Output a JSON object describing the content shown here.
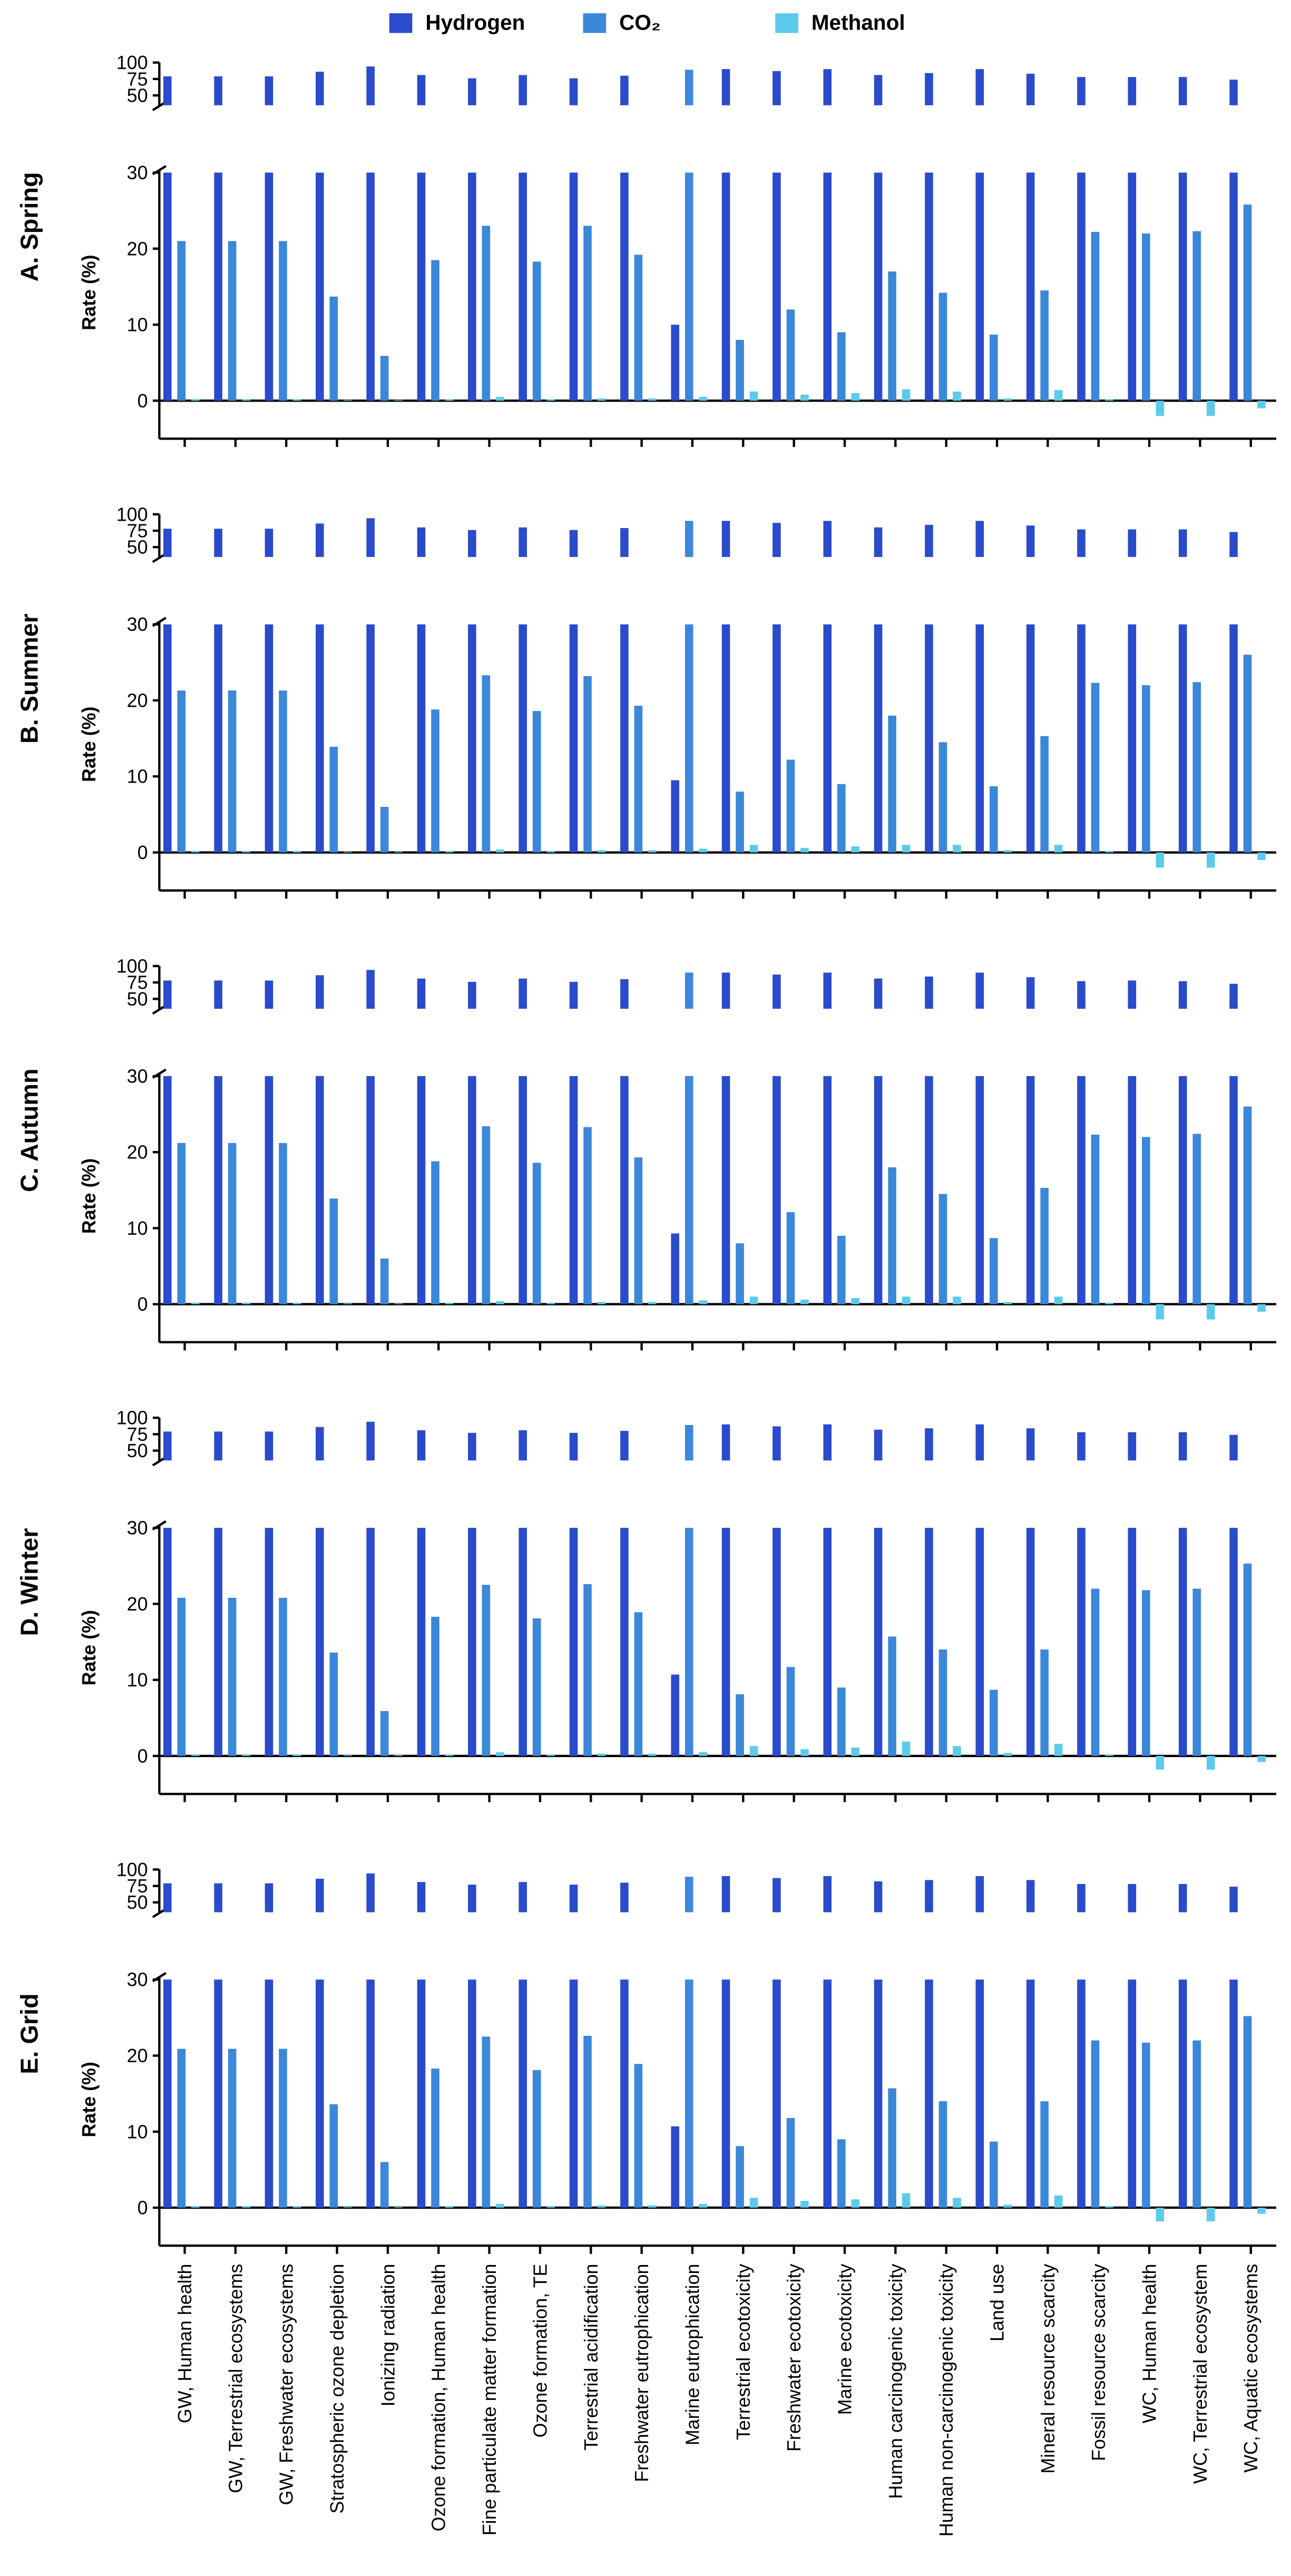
{
  "chart_data": {
    "type": "bar",
    "ylabel": "Rate (%)",
    "categories": [
      "GW, Human health",
      "GW, Terrestrial ecosystems",
      "GW, Freshwater ecosystems",
      "Stratospheric ozone depletion",
      "Ionizing radiation",
      "Ozone formation, Human health",
      "Fine particulate matter formation",
      "Ozone formation, TE",
      "Terrestrial acidification",
      "Freshwater eutrophication",
      "Marine eutrophication",
      "Terrestrial ecotoxicity",
      "Freshwater ecotoxicity",
      "Marine ecotoxicity",
      "Human carcinogenic toxicity",
      "Human non-carcinogenic toxicity",
      "Land use",
      "Mineral resource scarcity",
      "Fossil resource scarcity",
      "WC, Human health",
      "WC, Terrestrial ecosystem",
      "WC, Aquatic ecosystems"
    ],
    "series": [
      {
        "name": "Hydrogen",
        "color": "#2a4bcb"
      },
      {
        "name": "CO₂",
        "color": "#3b87da"
      },
      {
        "name": "Methanol",
        "color": "#5ccbea"
      }
    ],
    "ylim": [
      -5,
      30
    ],
    "yticks": [
      0,
      10,
      20,
      30
    ],
    "break_ylim": [
      40,
      100
    ],
    "break_yticks": [
      50,
      75,
      100
    ],
    "panels": [
      {
        "title": "A. Spring",
        "values": [
          [
            79,
            79,
            79,
            86,
            94,
            81,
            76,
            81,
            76,
            80,
            10,
            90,
            87,
            90,
            81,
            84,
            90,
            83,
            78,
            78,
            78,
            74
          ],
          [
            21,
            21,
            21,
            13.7,
            5.9,
            18.5,
            23,
            18.3,
            23,
            19.2,
            89,
            8,
            12,
            9,
            17,
            14.2,
            8.7,
            14.5,
            22.2,
            22,
            22.3,
            25.8
          ],
          [
            0.2,
            0.2,
            0.2,
            0.1,
            0.1,
            0.2,
            0.5,
            0.2,
            0.3,
            0.3,
            0.5,
            1.2,
            0.8,
            1,
            1.5,
            1.2,
            0.3,
            1.4,
            0.2,
            -2,
            -2,
            -1
          ]
        ]
      },
      {
        "title": "B. Summer",
        "values": [
          [
            78,
            78,
            78,
            86,
            94,
            80,
            76,
            80,
            76,
            79,
            9.5,
            90,
            87,
            90,
            80,
            84,
            90,
            83,
            77,
            77,
            77,
            73
          ],
          [
            21.3,
            21.3,
            21.3,
            13.9,
            6,
            18.8,
            23.3,
            18.6,
            23.2,
            19.3,
            90,
            8,
            12.2,
            9,
            18,
            14.5,
            8.7,
            15.3,
            22.3,
            22,
            22.4,
            26
          ],
          [
            0.2,
            0.2,
            0.2,
            0.1,
            0.1,
            0.2,
            0.4,
            0.2,
            0.3,
            0.3,
            0.5,
            1,
            0.6,
            0.8,
            1,
            1,
            0.3,
            1,
            0.2,
            -2,
            -2,
            -1
          ]
        ]
      },
      {
        "title": "C. Autumn",
        "values": [
          [
            78,
            78,
            78,
            86,
            94,
            81,
            76,
            81,
            76,
            80,
            9.3,
            90,
            87,
            90,
            81,
            84,
            90,
            83,
            77,
            78,
            77,
            73
          ],
          [
            21.2,
            21.2,
            21.2,
            13.9,
            6,
            18.8,
            23.4,
            18.6,
            23.3,
            19.3,
            90,
            8,
            12.1,
            9,
            18,
            14.5,
            8.7,
            15.3,
            22.3,
            22,
            22.4,
            26
          ],
          [
            0.2,
            0.2,
            0.2,
            0.1,
            0.1,
            0.2,
            0.4,
            0.2,
            0.3,
            0.3,
            0.5,
            1,
            0.6,
            0.8,
            1,
            1,
            0.3,
            1,
            0.2,
            -2,
            -2,
            -1
          ]
        ]
      },
      {
        "title": "D. Winter",
        "values": [
          [
            79,
            79,
            79,
            86,
            94,
            81,
            77,
            81,
            77,
            80,
            10.7,
            90,
            87,
            90,
            82,
            84,
            90,
            84,
            78,
            78,
            78,
            74
          ],
          [
            20.8,
            20.8,
            20.8,
            13.6,
            5.9,
            18.3,
            22.5,
            18.1,
            22.6,
            18.9,
            89,
            8.1,
            11.7,
            9,
            15.7,
            14,
            8.7,
            14,
            22,
            21.8,
            22,
            25.3
          ],
          [
            0.2,
            0.2,
            0.2,
            0.1,
            0.1,
            0.2,
            0.5,
            0.2,
            0.3,
            0.3,
            0.5,
            1.3,
            0.9,
            1.1,
            1.9,
            1.3,
            0.4,
            1.6,
            0.2,
            -1.8,
            -1.8,
            -0.8
          ]
        ]
      },
      {
        "title": "E. Grid",
        "values": [
          [
            79,
            79,
            79,
            86,
            94,
            81,
            77,
            81,
            77,
            80,
            10.7,
            90,
            87,
            90,
            82,
            84,
            90,
            84,
            78,
            78,
            78,
            74
          ],
          [
            20.9,
            20.9,
            20.9,
            13.6,
            6,
            18.3,
            22.5,
            18.1,
            22.6,
            18.9,
            89,
            8.1,
            11.8,
            9,
            15.7,
            14,
            8.7,
            14,
            22,
            21.7,
            22,
            25.2
          ],
          [
            0.2,
            0.2,
            0.2,
            0.1,
            0.1,
            0.2,
            0.5,
            0.2,
            0.3,
            0.3,
            0.5,
            1.3,
            0.9,
            1.1,
            1.9,
            1.3,
            0.4,
            1.6,
            0.2,
            -1.8,
            -1.8,
            -0.8
          ]
        ]
      }
    ]
  }
}
